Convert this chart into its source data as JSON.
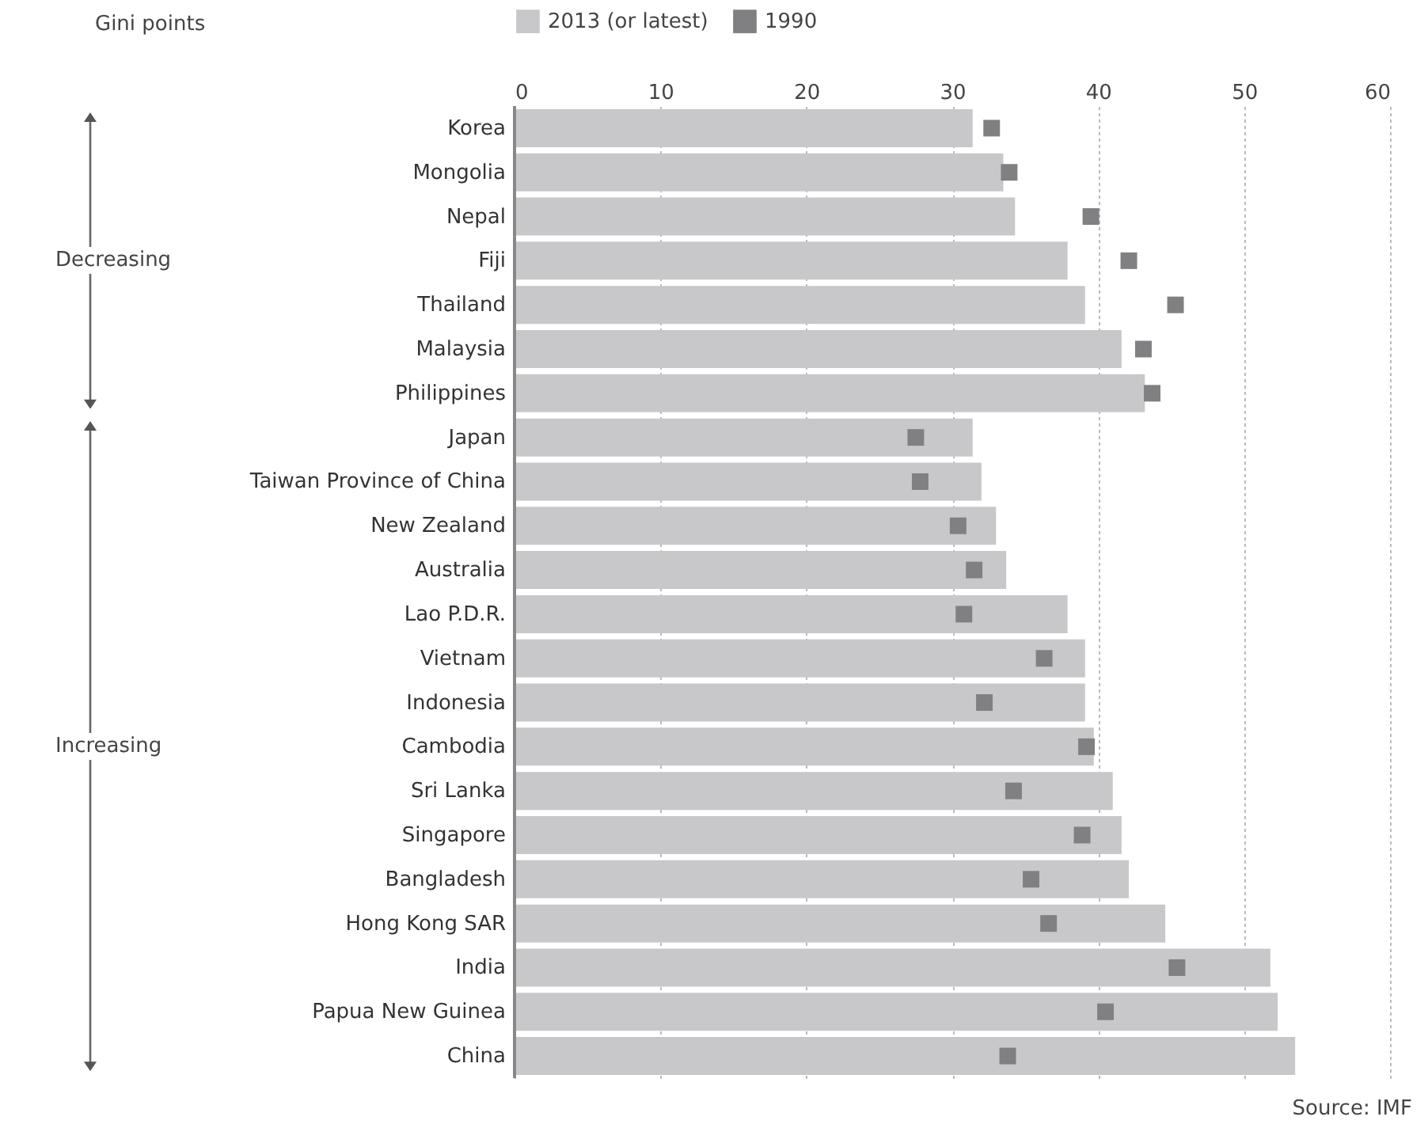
{
  "chart_data": {
    "type": "bar",
    "orientation": "horizontal",
    "categories": [
      "Korea",
      "Mongolia",
      "Nepal",
      "Fiji",
      "Thailand",
      "Malaysia",
      "Philippines",
      "Japan",
      "Taiwan Province of China",
      "New Zealand",
      "Australia",
      "Lao P.D.R.",
      "Vietnam",
      "Indonesia",
      "Cambodia",
      "Sri Lanka",
      "Singapore",
      "Bangladesh",
      "Hong Kong SAR",
      "India",
      "Papua New Guinea",
      "China"
    ],
    "series": [
      {
        "name": "2013 (or latest)",
        "color": "#c8c8ca",
        "values": [
          31.4,
          33.5,
          34.3,
          37.9,
          39.1,
          41.6,
          43.2,
          31.4,
          32.0,
          33.0,
          33.7,
          37.9,
          39.1,
          39.1,
          39.7,
          41.0,
          41.6,
          42.1,
          44.6,
          51.8,
          52.3,
          53.5
        ]
      },
      {
        "name": "1990",
        "type": "scatter",
        "marker": "square",
        "color": "#808082",
        "values": [
          32.7,
          33.9,
          39.5,
          42.1,
          45.3,
          43.1,
          43.7,
          27.5,
          27.8,
          30.4,
          31.5,
          30.8,
          36.3,
          32.2,
          39.2,
          34.2,
          38.9,
          35.4,
          36.6,
          45.4,
          40.5,
          33.8
        ]
      }
    ],
    "xlim": [
      0,
      60
    ],
    "xticks": [
      0,
      10,
      20,
      30,
      40,
      50,
      60
    ],
    "grid": "x",
    "legend": "top",
    "annotations": [
      "Gini points",
      "Decreasing",
      "Increasing",
      "Source: IMF"
    ]
  }
}
